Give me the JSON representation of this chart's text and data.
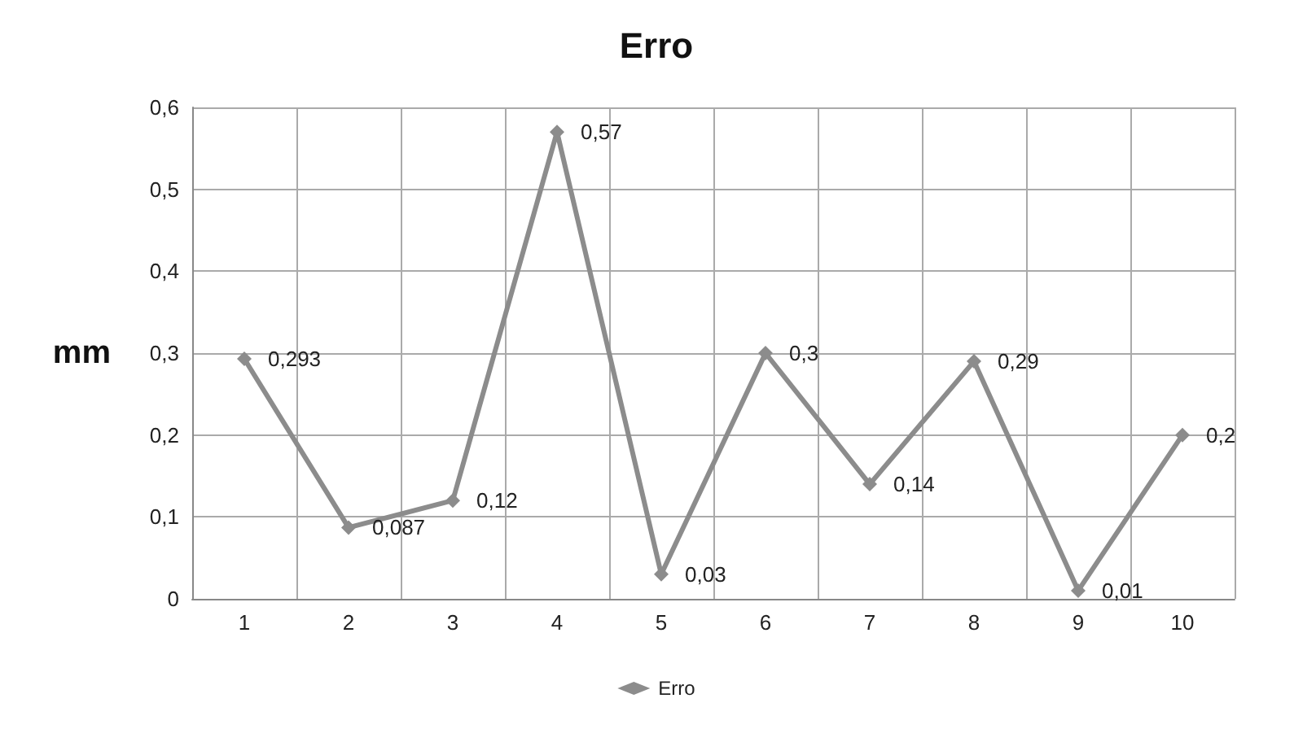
{
  "chart_data": {
    "type": "line",
    "title": "Erro",
    "ylabel": "mm",
    "categories": [
      "1",
      "2",
      "3",
      "4",
      "5",
      "6",
      "7",
      "8",
      "9",
      "10"
    ],
    "series": [
      {
        "name": "Erro",
        "color": "#8c8c8c",
        "values": [
          0.293,
          0.087,
          0.12,
          0.57,
          0.03,
          0.3,
          0.14,
          0.29,
          0.01,
          0.2
        ],
        "value_labels": [
          "0,293",
          "0,087",
          "0,12",
          "0,57",
          "0,03",
          "0,3",
          "0,14",
          "0,29",
          "0,01",
          "0,2"
        ]
      }
    ],
    "ylim": [
      0,
      0.6
    ],
    "yticks": [
      0,
      {
        "value": 0.1,
        "label": "0,1"
      },
      {
        "value": 0.2,
        "label": "0,2"
      },
      {
        "value": 0.3,
        "label": "0,3"
      },
      {
        "value": 0.4,
        "label": "0,4"
      },
      {
        "value": 0.5,
        "label": "0,5"
      },
      {
        "value": 0.6,
        "label": "0,6"
      }
    ],
    "grid": true,
    "legend": "bottom",
    "marker": "diamond",
    "line_style": "solid"
  }
}
